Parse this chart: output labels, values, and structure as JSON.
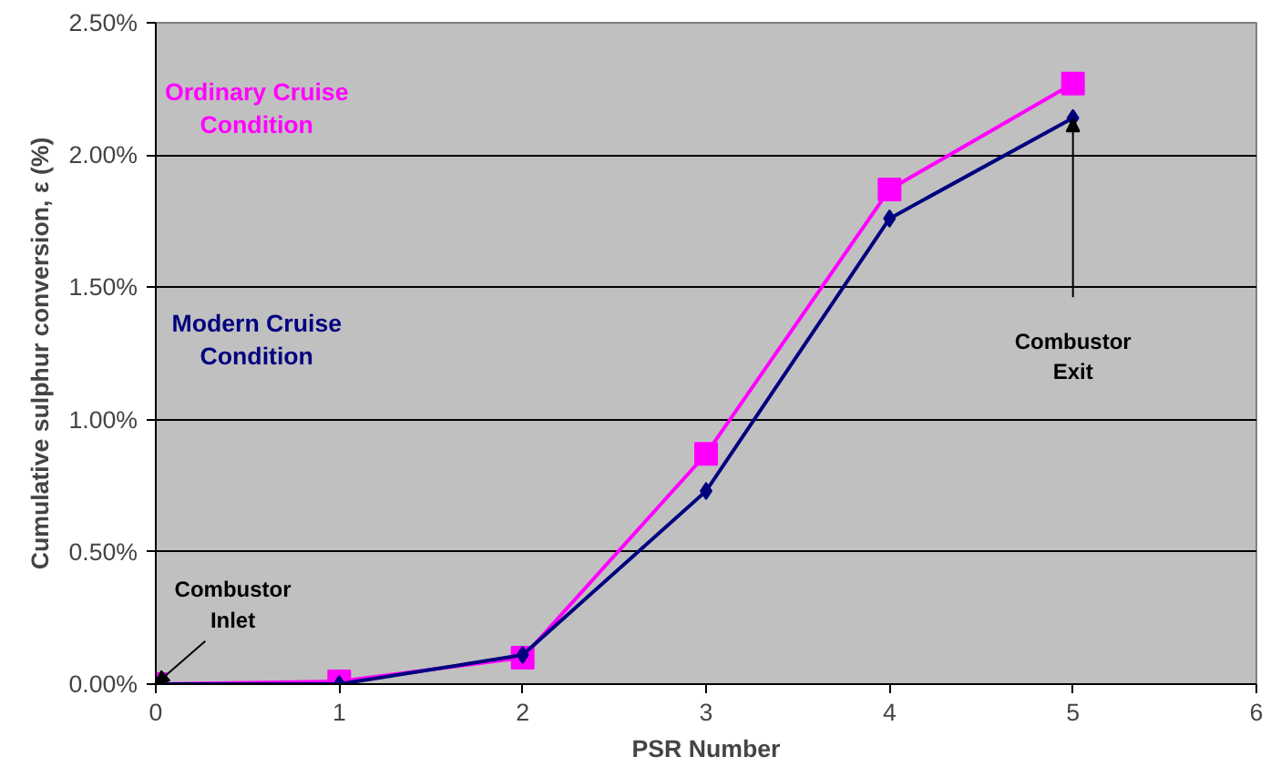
{
  "chart_data": {
    "type": "line",
    "xlabel": "PSR Number",
    "ylabel": "Cumulative sulphur conversion, ε (%)",
    "x": [
      0,
      1,
      2,
      3,
      4,
      5
    ],
    "series": [
      {
        "name": "Ordinary Cruise Condition",
        "color": "#ff00ff",
        "marker": "square",
        "values": [
          0,
          0.01,
          0.1,
          0.87,
          1.87,
          2.27
        ]
      },
      {
        "name": "Modern Cruise Condition",
        "color": "#000080",
        "marker": "diamond",
        "values": [
          0,
          0,
          0.11,
          0.73,
          1.76,
          2.14
        ]
      }
    ],
    "xlim": [
      0,
      6
    ],
    "xticks": [
      0,
      1,
      2,
      3,
      4,
      5,
      6
    ],
    "ylim": [
      0,
      2.5
    ],
    "yticks": [
      {
        "value": 0,
        "label": "0.00%"
      },
      {
        "value": 0.5,
        "label": "0.50%"
      },
      {
        "value": 1,
        "label": "1.00%"
      },
      {
        "value": 1.5,
        "label": "1.50%"
      },
      {
        "value": 2,
        "label": "2.00%"
      },
      {
        "value": 2.5,
        "label": "2.50%"
      }
    ],
    "grid": "y",
    "line_style": "solid",
    "annotations": [
      {
        "text": "Combustor\nInlet",
        "x": 0,
        "y": 0
      },
      "Combustor\nExit"
    ]
  }
}
